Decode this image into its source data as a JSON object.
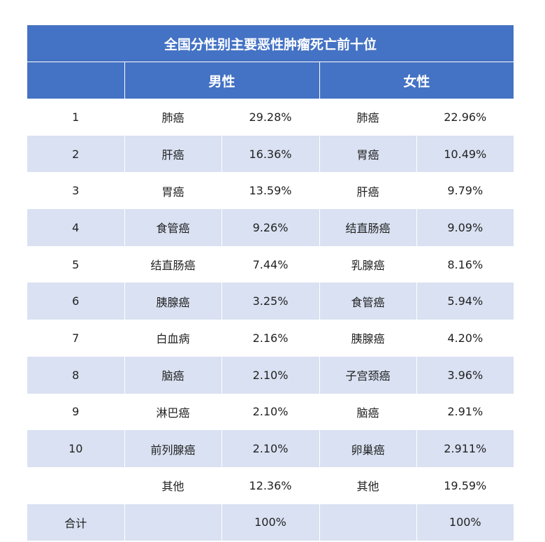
{
  "table": {
    "title": "全国分性别主要恶性肿瘤死亡前十位",
    "male_header": "男性",
    "female_header": "女性",
    "rows": [
      {
        "rank": "1",
        "male_name": "肺癌",
        "male_pct": "29.28%",
        "female_name": "肺癌",
        "female_pct": "22.96%"
      },
      {
        "rank": "2",
        "male_name": "肝癌",
        "male_pct": "16.36%",
        "female_name": "胃癌",
        "female_pct": "10.49%"
      },
      {
        "rank": "3",
        "male_name": "胃癌",
        "male_pct": "13.59%",
        "female_name": "肝癌",
        "female_pct": "9.79%"
      },
      {
        "rank": "4",
        "male_name": "食管癌",
        "male_pct": "9.26%",
        "female_name": "结直肠癌",
        "female_pct": "9.09%"
      },
      {
        "rank": "5",
        "male_name": "结直肠癌",
        "male_pct": "7.44%",
        "female_name": "乳腺癌",
        "female_pct": "8.16%"
      },
      {
        "rank": "6",
        "male_name": "胰腺癌",
        "male_pct": "3.25%",
        "female_name": "食管癌",
        "female_pct": "5.94%"
      },
      {
        "rank": "7",
        "male_name": "白血病",
        "male_pct": "2.16%",
        "female_name": "胰腺癌",
        "female_pct": "4.20%"
      },
      {
        "rank": "8",
        "male_name": "脑癌",
        "male_pct": "2.10%",
        "female_name": "子宫颈癌",
        "female_pct": "3.96%"
      },
      {
        "rank": "9",
        "male_name": "淋巴癌",
        "male_pct": "2.10%",
        "female_name": "脑癌",
        "female_pct": "2.91%"
      },
      {
        "rank": "10",
        "male_name": "前列腺癌",
        "male_pct": "2.10%",
        "female_name": "卵巢癌",
        "female_pct": "2.911%"
      },
      {
        "rank": "",
        "male_name": "其他",
        "male_pct": "12.36%",
        "female_name": "其他",
        "female_pct": "19.59%"
      },
      {
        "rank": "合计",
        "male_name": "",
        "male_pct": "100%",
        "female_name": "",
        "female_pct": "100%"
      }
    ]
  }
}
